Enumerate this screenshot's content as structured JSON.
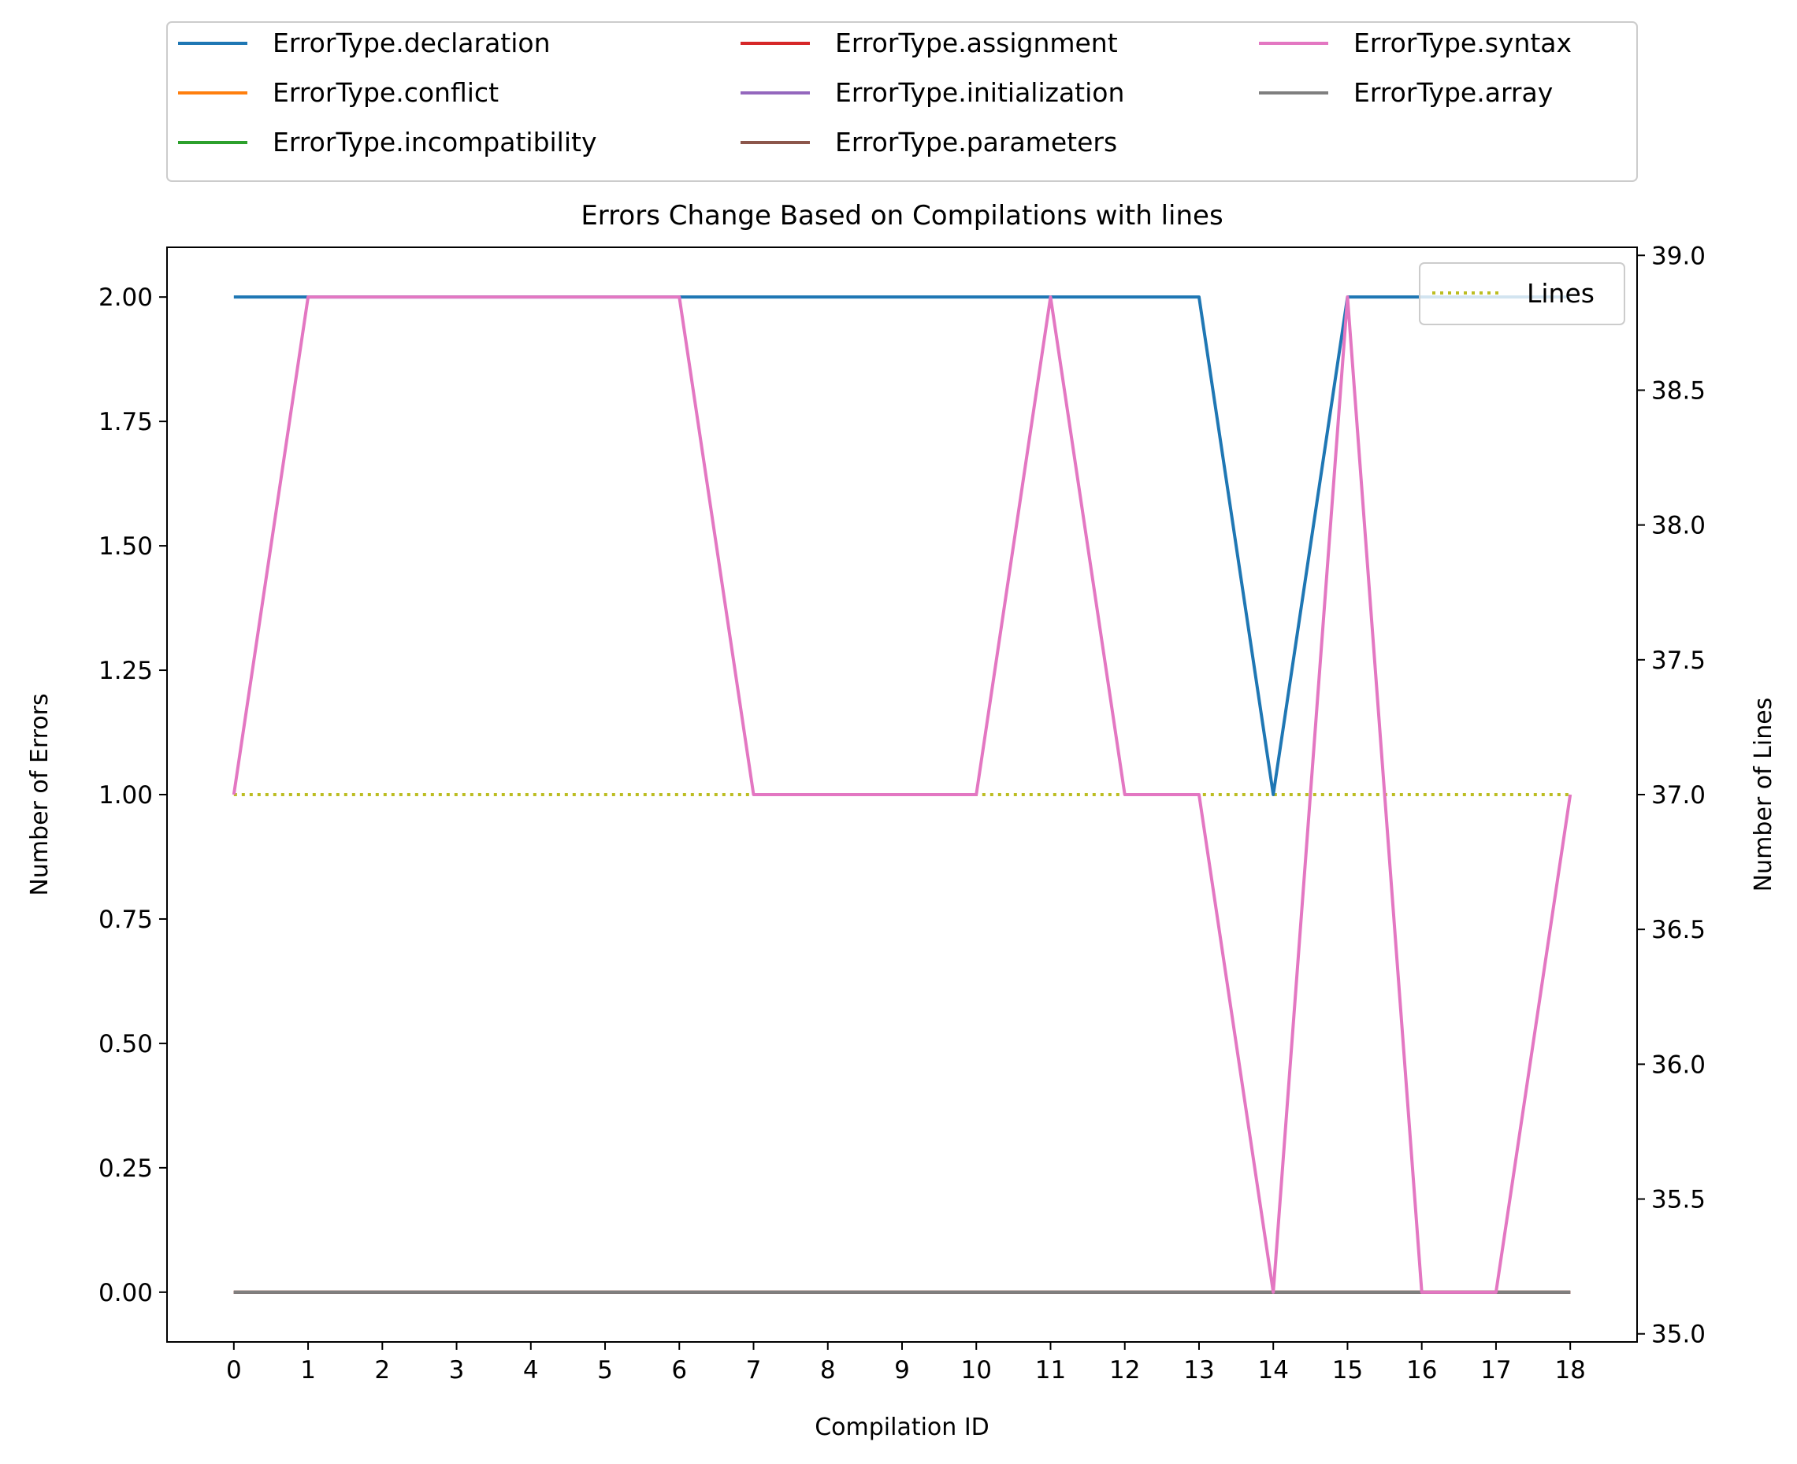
{
  "chart_data": {
    "type": "line",
    "title": "Errors Change Based on Compilations with lines",
    "xlabel": "Compilation ID",
    "ylabel": "Number of Errors",
    "y2label": "Number of Lines",
    "x": [
      0,
      1,
      2,
      3,
      4,
      5,
      6,
      7,
      8,
      9,
      10,
      11,
      12,
      13,
      14,
      15,
      16,
      17,
      18
    ],
    "xlim": [
      -0.9,
      18.9
    ],
    "ylim": [
      -0.1,
      2.1
    ],
    "y2lim": [
      34.97,
      39.03
    ],
    "yticks": [
      "0.00",
      "0.25",
      "0.50",
      "0.75",
      "1.00",
      "1.25",
      "1.50",
      "1.75",
      "2.00"
    ],
    "y2ticks": [
      "35.0",
      "35.5",
      "36.0",
      "36.5",
      "37.0",
      "37.5",
      "38.0",
      "38.5",
      "39.0"
    ],
    "grid": false,
    "legend_placement": "above plot, three columns",
    "secondary_legend_placement": "upper right",
    "series": [
      {
        "name": "ErrorType.declaration",
        "axis": "left",
        "color": "#1f77b4",
        "style": "solid",
        "values": [
          2,
          2,
          2,
          2,
          2,
          2,
          2,
          2,
          2,
          2,
          2,
          2,
          2,
          2,
          1,
          2,
          2,
          2,
          2
        ]
      },
      {
        "name": "ErrorType.conflict",
        "axis": "left",
        "color": "#ff7f0e",
        "style": "solid",
        "values": [
          0,
          0,
          0,
          0,
          0,
          0,
          0,
          0,
          0,
          0,
          0,
          0,
          0,
          0,
          0,
          0,
          0,
          0,
          0
        ]
      },
      {
        "name": "ErrorType.incompatibility",
        "axis": "left",
        "color": "#2ca02c",
        "style": "solid",
        "values": [
          0,
          0,
          0,
          0,
          0,
          0,
          0,
          0,
          0,
          0,
          0,
          0,
          0,
          0,
          0,
          0,
          0,
          0,
          0
        ]
      },
      {
        "name": "ErrorType.assignment",
        "axis": "left",
        "color": "#d62728",
        "style": "solid",
        "values": [
          0,
          0,
          0,
          0,
          0,
          0,
          0,
          0,
          0,
          0,
          0,
          0,
          0,
          0,
          0,
          0,
          0,
          0,
          0
        ]
      },
      {
        "name": "ErrorType.initialization",
        "axis": "left",
        "color": "#9467bd",
        "style": "solid",
        "values": [
          0,
          0,
          0,
          0,
          0,
          0,
          0,
          0,
          0,
          0,
          0,
          0,
          0,
          0,
          0,
          0,
          0,
          0,
          0
        ]
      },
      {
        "name": "ErrorType.parameters",
        "axis": "left",
        "color": "#8c564b",
        "style": "solid",
        "values": [
          0,
          0,
          0,
          0,
          0,
          0,
          0,
          0,
          0,
          0,
          0,
          0,
          0,
          0,
          0,
          0,
          0,
          0,
          0
        ]
      },
      {
        "name": "ErrorType.syntax",
        "axis": "left",
        "color": "#e377c2",
        "style": "solid",
        "values": [
          1,
          2,
          2,
          2,
          2,
          2,
          2,
          1,
          1,
          1,
          1,
          2,
          1,
          1,
          0,
          2,
          0,
          0,
          1
        ]
      },
      {
        "name": "ErrorType.array",
        "axis": "left",
        "color": "#7f7f7f",
        "style": "solid",
        "values": [
          0,
          0,
          0,
          0,
          0,
          0,
          0,
          0,
          0,
          0,
          0,
          0,
          0,
          0,
          0,
          0,
          0,
          0,
          0
        ]
      },
      {
        "name": "Lines",
        "axis": "right",
        "color": "#bcbd22",
        "style": "dotted",
        "values": [
          37,
          37,
          37,
          37,
          37,
          37,
          37,
          37,
          37,
          37,
          37,
          37,
          37,
          37,
          37,
          37,
          37,
          37,
          37
        ]
      }
    ]
  }
}
